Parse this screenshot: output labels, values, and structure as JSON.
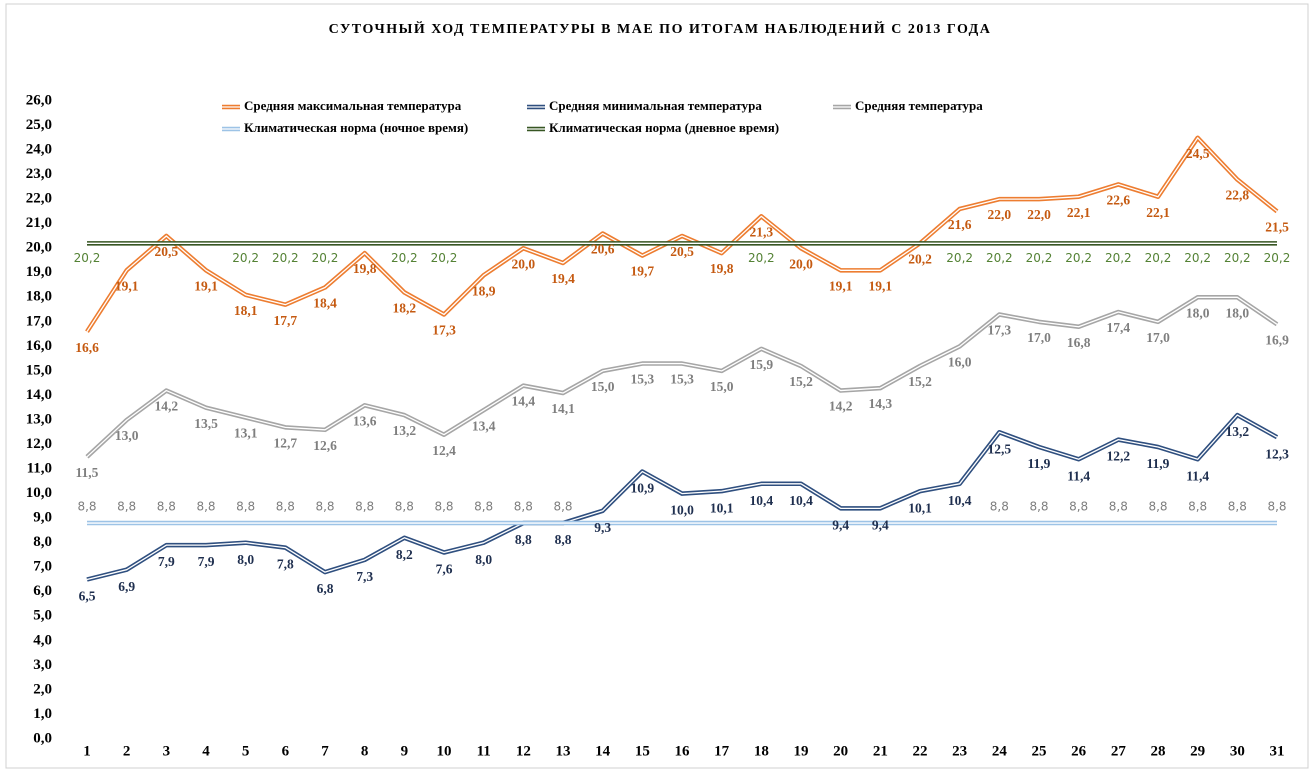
{
  "chart_data": {
    "type": "line",
    "title": "СУТОЧНЫЙ ХОД ТЕМПЕРАТУРЫ В МАЕ ПО ИТОГАМ НАБЛЮДЕНИЙ С 2013 ГОДА",
    "categories": [
      "1",
      "2",
      "3",
      "4",
      "5",
      "6",
      "7",
      "8",
      "9",
      "10",
      "11",
      "12",
      "13",
      "14",
      "15",
      "16",
      "17",
      "18",
      "19",
      "20",
      "21",
      "22",
      "23",
      "24",
      "25",
      "26",
      "27",
      "28",
      "29",
      "30",
      "31"
    ],
    "ylim": [
      0,
      26
    ],
    "yticks": [
      {
        "value": 0,
        "label": "0,0"
      },
      {
        "value": 1,
        "label": "1,0"
      },
      {
        "value": 2,
        "label": "2,0"
      },
      {
        "value": 3,
        "label": "3,0"
      },
      {
        "value": 4,
        "label": "4,0"
      },
      {
        "value": 5,
        "label": "5,0"
      },
      {
        "value": 6,
        "label": "6,0"
      },
      {
        "value": 7,
        "label": "7,0"
      },
      {
        "value": 8,
        "label": "8,0"
      },
      {
        "value": 9,
        "label": "9,0"
      },
      {
        "value": 10,
        "label": "10,0"
      },
      {
        "value": 11,
        "label": "11,0"
      },
      {
        "value": 12,
        "label": "12,0"
      },
      {
        "value": 13,
        "label": "13,0"
      },
      {
        "value": 14,
        "label": "14,0"
      },
      {
        "value": 15,
        "label": "15,0"
      },
      {
        "value": 16,
        "label": "16,0"
      },
      {
        "value": 17,
        "label": "17,0"
      },
      {
        "value": 18,
        "label": "18,0"
      },
      {
        "value": 19,
        "label": "19,0"
      },
      {
        "value": 20,
        "label": "20,0"
      },
      {
        "value": 21,
        "label": "21,0"
      },
      {
        "value": 22,
        "label": "22,0"
      },
      {
        "value": 23,
        "label": "23,0"
      },
      {
        "value": 24,
        "label": "24,0"
      },
      {
        "value": 25,
        "label": "25,0"
      },
      {
        "value": 26,
        "label": "26,0"
      }
    ],
    "series": [
      {
        "name": "Средняя максимальная температура",
        "color": "#ed7d31",
        "label_color": "#c55a11",
        "values": [
          16.6,
          19.1,
          20.5,
          19.1,
          18.1,
          17.7,
          18.4,
          19.8,
          18.2,
          17.3,
          18.9,
          20.0,
          19.4,
          20.6,
          19.7,
          20.5,
          19.8,
          21.3,
          20.0,
          19.1,
          19.1,
          20.2,
          21.6,
          22.0,
          22.0,
          22.1,
          22.6,
          22.1,
          24.5,
          22.8,
          21.5
        ],
        "value_labels": [
          "16,6",
          "19,1",
          "20,5",
          "19,1",
          "18,1",
          "17,7",
          "18,4",
          "19,8",
          "18,2",
          "17,3",
          "18,9",
          "20,0",
          "19,4",
          "20,6",
          "19,7",
          "20,5",
          "19,8",
          "21,3",
          "20,0",
          "19,1",
          "19,1",
          "20,2",
          "21,6",
          "22,0",
          "22,0",
          "22,1",
          "22,6",
          "22,1",
          "24,5",
          "22,8",
          "21,5"
        ]
      },
      {
        "name": "Средняя минимальная температура",
        "color": "#2f4f7f",
        "label_color": "#1f2f4f",
        "values": [
          6.5,
          6.9,
          7.9,
          7.9,
          8.0,
          7.8,
          6.8,
          7.3,
          8.2,
          7.6,
          8.0,
          8.8,
          8.8,
          9.3,
          10.9,
          10.0,
          10.1,
          10.4,
          10.4,
          9.4,
          9.4,
          10.1,
          10.4,
          12.5,
          11.9,
          11.4,
          12.2,
          11.9,
          11.4,
          13.2,
          12.3
        ],
        "value_labels": [
          "6,5",
          "6,9",
          "7,9",
          "7,9",
          "8,0",
          "7,8",
          "6,8",
          "7,3",
          "8,2",
          "7,6",
          "8,0",
          "8,8",
          "8,8",
          "9,3",
          "10,9",
          "10,0",
          "10,1",
          "10,4",
          "10,4",
          "9,4",
          "9,4",
          "10,1",
          "10,4",
          "12,5",
          "11,9",
          "11,4",
          "12,2",
          "11,9",
          "11,4",
          "13,2",
          "12,3"
        ]
      },
      {
        "name": "Средняя температура",
        "color": "#a6a6a6",
        "label_color": "#7f7f7f",
        "values": [
          11.5,
          13.0,
          14.2,
          13.5,
          13.1,
          12.7,
          12.6,
          13.6,
          13.2,
          12.4,
          13.4,
          14.4,
          14.1,
          15.0,
          15.3,
          15.3,
          15.0,
          15.9,
          15.2,
          14.2,
          14.3,
          15.2,
          16.0,
          17.3,
          17.0,
          16.8,
          17.4,
          17.0,
          18.0,
          18.0,
          16.9
        ],
        "value_labels": [
          "11,5",
          "13,0",
          "14,2",
          "13,5",
          "13,1",
          "12,7",
          "12,6",
          "13,6",
          "13,2",
          "12,4",
          "13,4",
          "14,4",
          "14,1",
          "15,0",
          "15,3",
          "15,3",
          "15,0",
          "15,9",
          "15,2",
          "14,2",
          "14,3",
          "15,2",
          "16,0",
          "17,3",
          "17,0",
          "16,8",
          "17,4",
          "17,0",
          "18,0",
          "18,0",
          "16,9"
        ]
      },
      {
        "name": "Климатическая норма (ночное время)",
        "color": "#9dc3e6",
        "label_color": "#7f7f7f",
        "values": [
          8.8,
          8.8,
          8.8,
          8.8,
          8.8,
          8.8,
          8.8,
          8.8,
          8.8,
          8.8,
          8.8,
          8.8,
          8.8,
          8.8,
          8.8,
          8.8,
          8.8,
          8.8,
          8.8,
          8.8,
          8.8,
          8.8,
          8.8,
          8.8,
          8.8,
          8.8,
          8.8,
          8.8,
          8.8,
          8.8,
          8.8
        ],
        "value_labels": [
          "8,8",
          "8,8",
          "8,8",
          "8,8",
          "8,8",
          "8,8",
          "8,8",
          "8,8",
          "8,8",
          "8,8",
          "8,8",
          "8,8",
          "8,8",
          null,
          null,
          null,
          null,
          null,
          null,
          null,
          null,
          null,
          null,
          "8,8",
          "8,8",
          "8,8",
          "8,8",
          "8,8",
          "8,8",
          "8,8",
          "8,8"
        ]
      },
      {
        "name": "Климатическая норма (дневное время)",
        "color": "#375623",
        "label_color": "#548235",
        "values": [
          20.2,
          20.2,
          20.2,
          20.2,
          20.2,
          20.2,
          20.2,
          20.2,
          20.2,
          20.2,
          20.2,
          20.2,
          20.2,
          20.2,
          20.2,
          20.2,
          20.2,
          20.2,
          20.2,
          20.2,
          20.2,
          20.2,
          20.2,
          20.2,
          20.2,
          20.2,
          20.2,
          20.2,
          20.2,
          20.2,
          20.2
        ],
        "value_labels": [
          "20,2",
          null,
          null,
          null,
          "20,2",
          "20,2",
          "20,2",
          null,
          "20,2",
          "20,2",
          null,
          null,
          null,
          null,
          null,
          null,
          null,
          "20,2",
          null,
          null,
          null,
          null,
          "20,2",
          "20,2",
          "20,2",
          "20,2",
          "20,2",
          "20,2",
          "20,2",
          "20,2",
          "20,2"
        ]
      }
    ]
  }
}
